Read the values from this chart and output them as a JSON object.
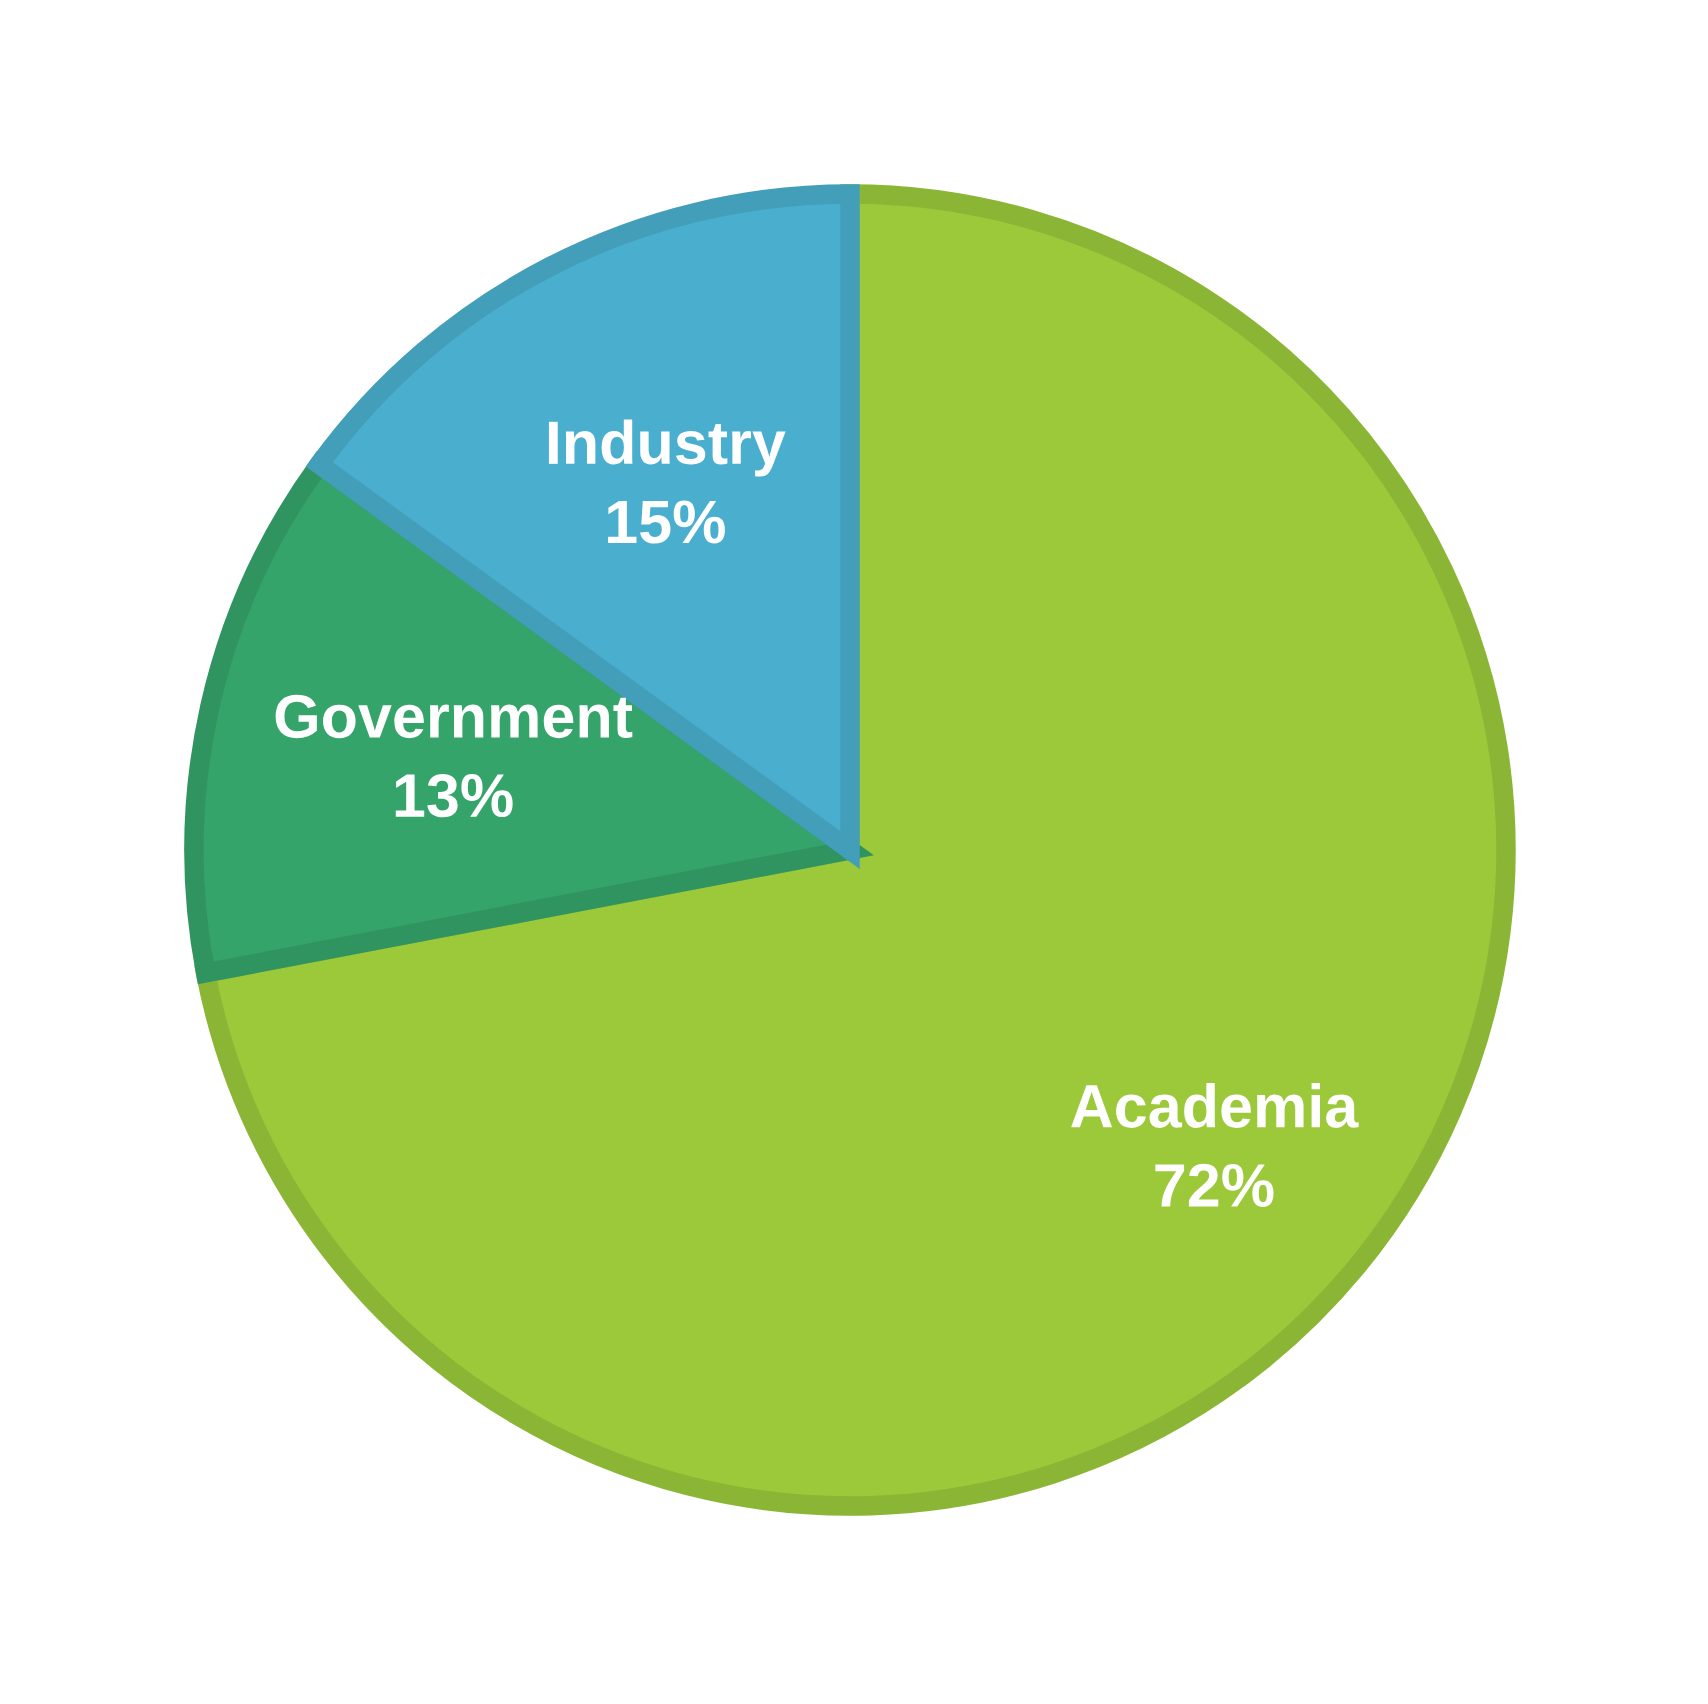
{
  "chart_data": {
    "type": "pie",
    "categories": [
      "Academia",
      "Government",
      "Industry"
    ],
    "values": [
      72,
      13,
      15
    ],
    "colors": [
      "#9bc93a",
      "#35a46b",
      "#4aafcf"
    ],
    "value_labels": [
      "72%",
      "13%",
      "15%"
    ],
    "legend": false
  }
}
